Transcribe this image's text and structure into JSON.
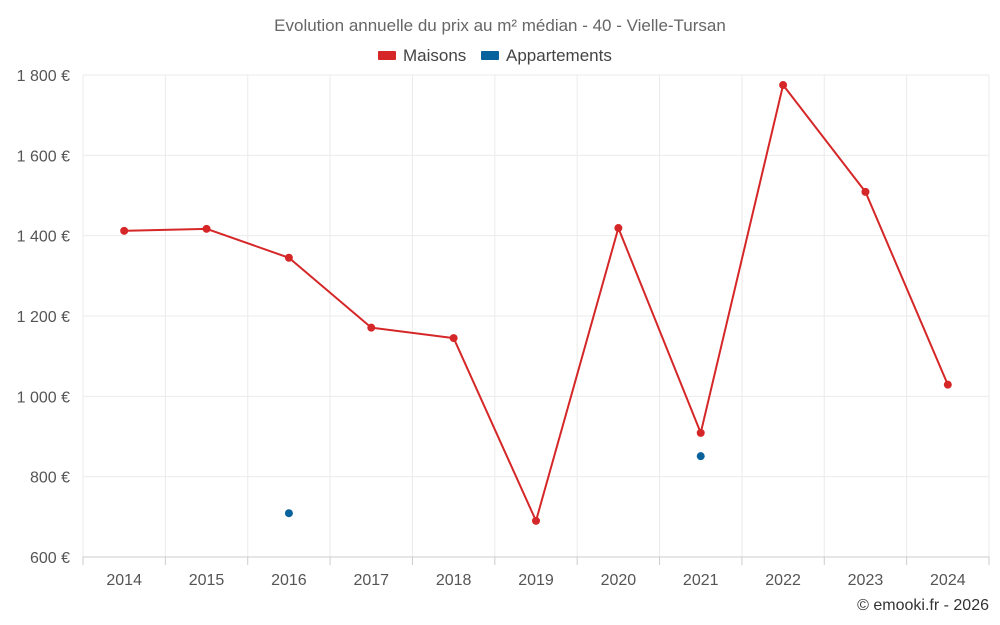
{
  "chart_data": {
    "type": "line",
    "title": "Evolution annuelle du prix au m² médian - 40 - Vielle-Tursan",
    "categories": [
      "2014",
      "2015",
      "2016",
      "2017",
      "2018",
      "2019",
      "2020",
      "2021",
      "2022",
      "2023",
      "2024"
    ],
    "ylim": [
      600,
      1800
    ],
    "yticks": [
      600,
      800,
      1000,
      1200,
      1400,
      1600,
      1800
    ],
    "ytick_labels": [
      "600 €",
      "800 €",
      "1 000 €",
      "1 200 €",
      "1 400 €",
      "1 600 €",
      "1 800 €"
    ],
    "grid": true,
    "legend_position": "top-center",
    "series": [
      {
        "name": "Maisons",
        "color": "#d62728",
        "line": true,
        "values": [
          1412,
          1417,
          1345,
          1171,
          1145,
          690,
          1419,
          909,
          1775,
          1509,
          1029
        ]
      },
      {
        "name": "Appartements",
        "color": "#08629c",
        "line": false,
        "values": [
          null,
          null,
          709,
          null,
          null,
          null,
          null,
          851,
          null,
          null,
          null
        ]
      }
    ],
    "credit": "© emooki.fr - 2026"
  }
}
